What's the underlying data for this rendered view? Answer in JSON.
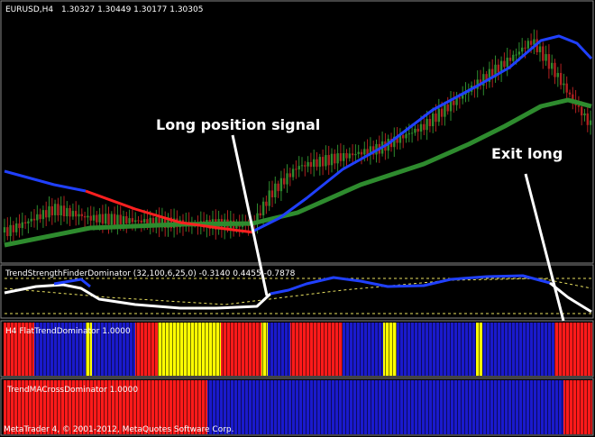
{
  "header": {
    "symbol": "EURUSD,H4",
    "ohlc": "1.30327 1.30449 1.30177 1.30305"
  },
  "annotations": [
    "Long position signal",
    "Exit long"
  ],
  "panels": [
    {
      "label": "TrendStrengthFinderDominator (32,100,6,25,0) -0.3140 0.4455 -0.7878"
    },
    {
      "label": "H4 FlatTrendDominator 1.0000"
    },
    {
      "label": "TrendMACrossDominator 1.0000"
    }
  ],
  "footer": "MetaTrader 4, © 2001-2012, MetaQuotes Software Corp."
}
